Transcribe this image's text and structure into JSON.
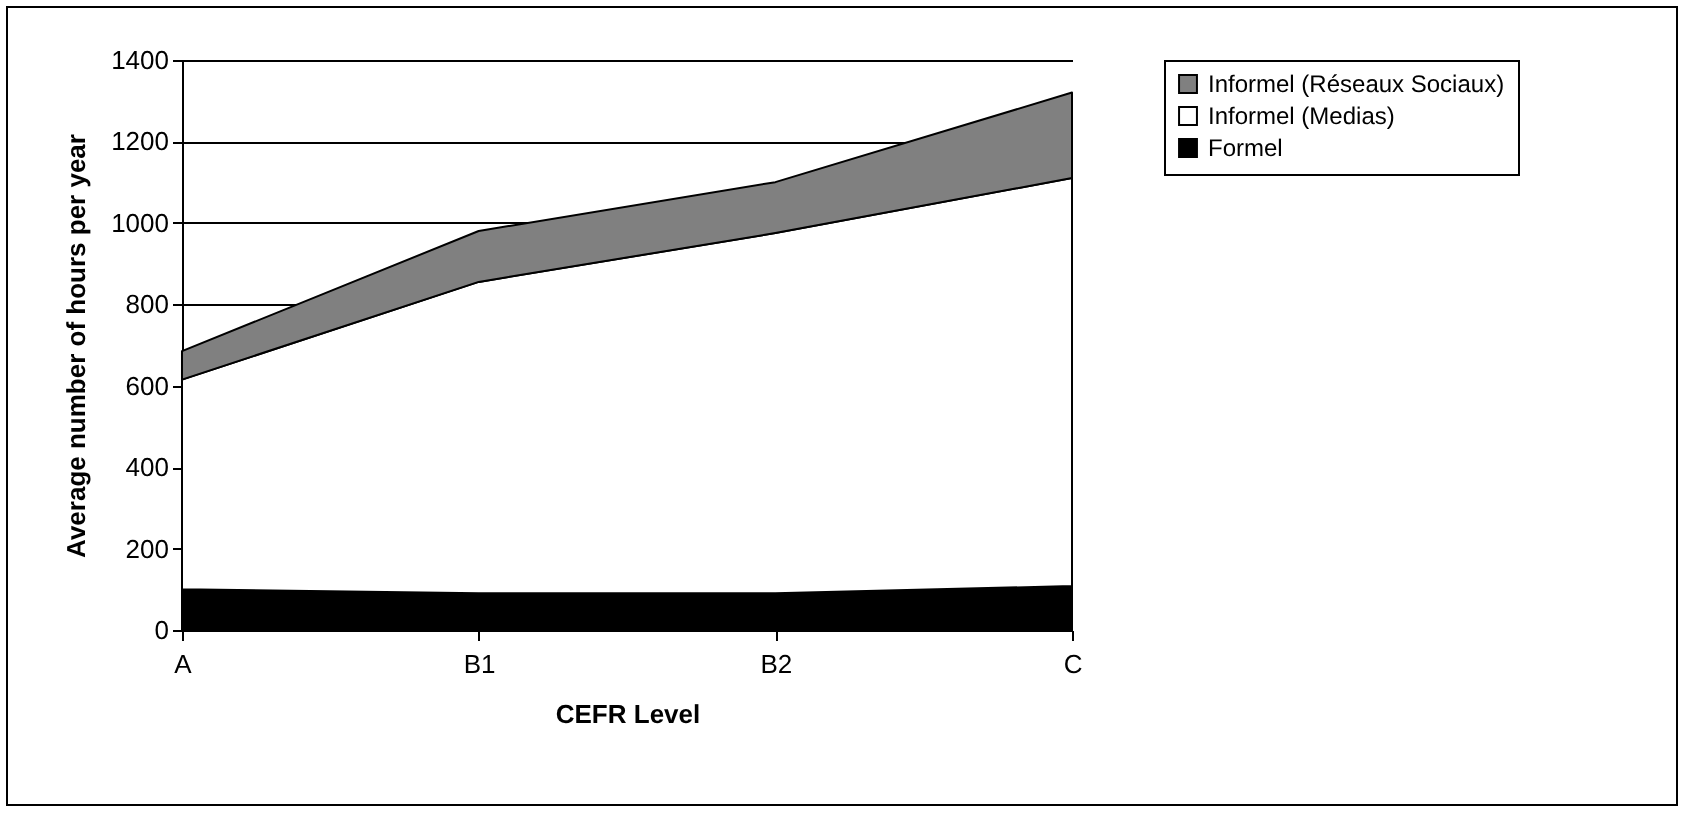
{
  "chart_data": {
    "type": "area",
    "stacked": true,
    "xlabel": "CEFR Level",
    "ylabel": "Average number of hours per year",
    "categories": [
      "A",
      "B1",
      "B2",
      "C"
    ],
    "series": [
      {
        "name": "Formel",
        "color": "#000000",
        "values": [
          100,
          90,
          90,
          108
        ]
      },
      {
        "name": "Informel (Medias)",
        "color": "#ffffff",
        "values": [
          515,
          765,
          885,
          1002
        ]
      },
      {
        "name": "Informel (Réseaux Sociaux)",
        "color": "#808080",
        "values": [
          70,
          125,
          125,
          210
        ]
      }
    ],
    "ylim": [
      0,
      1400
    ],
    "yticks": [
      0,
      200,
      400,
      600,
      800,
      1000,
      1200,
      1400
    ],
    "grid": "y",
    "legend": "right"
  }
}
